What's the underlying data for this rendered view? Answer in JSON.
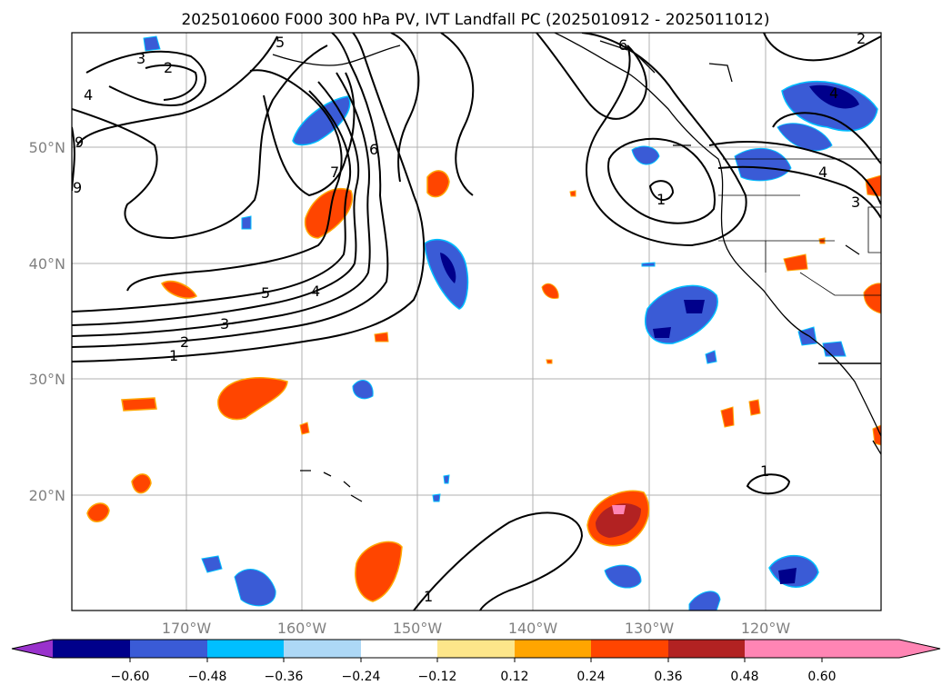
{
  "title": "2025010600 F000 300 hPa PV, IVT Landfall PC (2025010912 - 2025011012)",
  "map": {
    "lat_labels": [
      "50°N",
      "40°N",
      "30°N",
      "20°N"
    ],
    "lon_labels": [
      "170°W",
      "160°W",
      "150°W",
      "140°W",
      "130°W",
      "120°W"
    ],
    "grid": true,
    "contour_color": "#000000",
    "pv_contour_labels": [
      "1",
      "2",
      "3",
      "4",
      "5",
      "6",
      "7",
      "1",
      "2",
      "3",
      "4",
      "5",
      "6",
      "9",
      "9",
      "1",
      "1",
      "2",
      "4",
      "3",
      "4"
    ]
  },
  "colorbar": {
    "tick_labels": [
      "−0.60",
      "−0.48",
      "−0.36",
      "−0.24",
      "−0.12",
      "0.12",
      "0.24",
      "0.36",
      "0.48",
      "0.60"
    ],
    "colors": [
      "#9932cc",
      "#00008b",
      "#3a5bd6",
      "#00bfff",
      "#add8f6",
      "#ffffff",
      "#fde68a",
      "#ffa500",
      "#ff4500",
      "#b22222",
      "#ff85b4"
    ],
    "extend": "both"
  }
}
